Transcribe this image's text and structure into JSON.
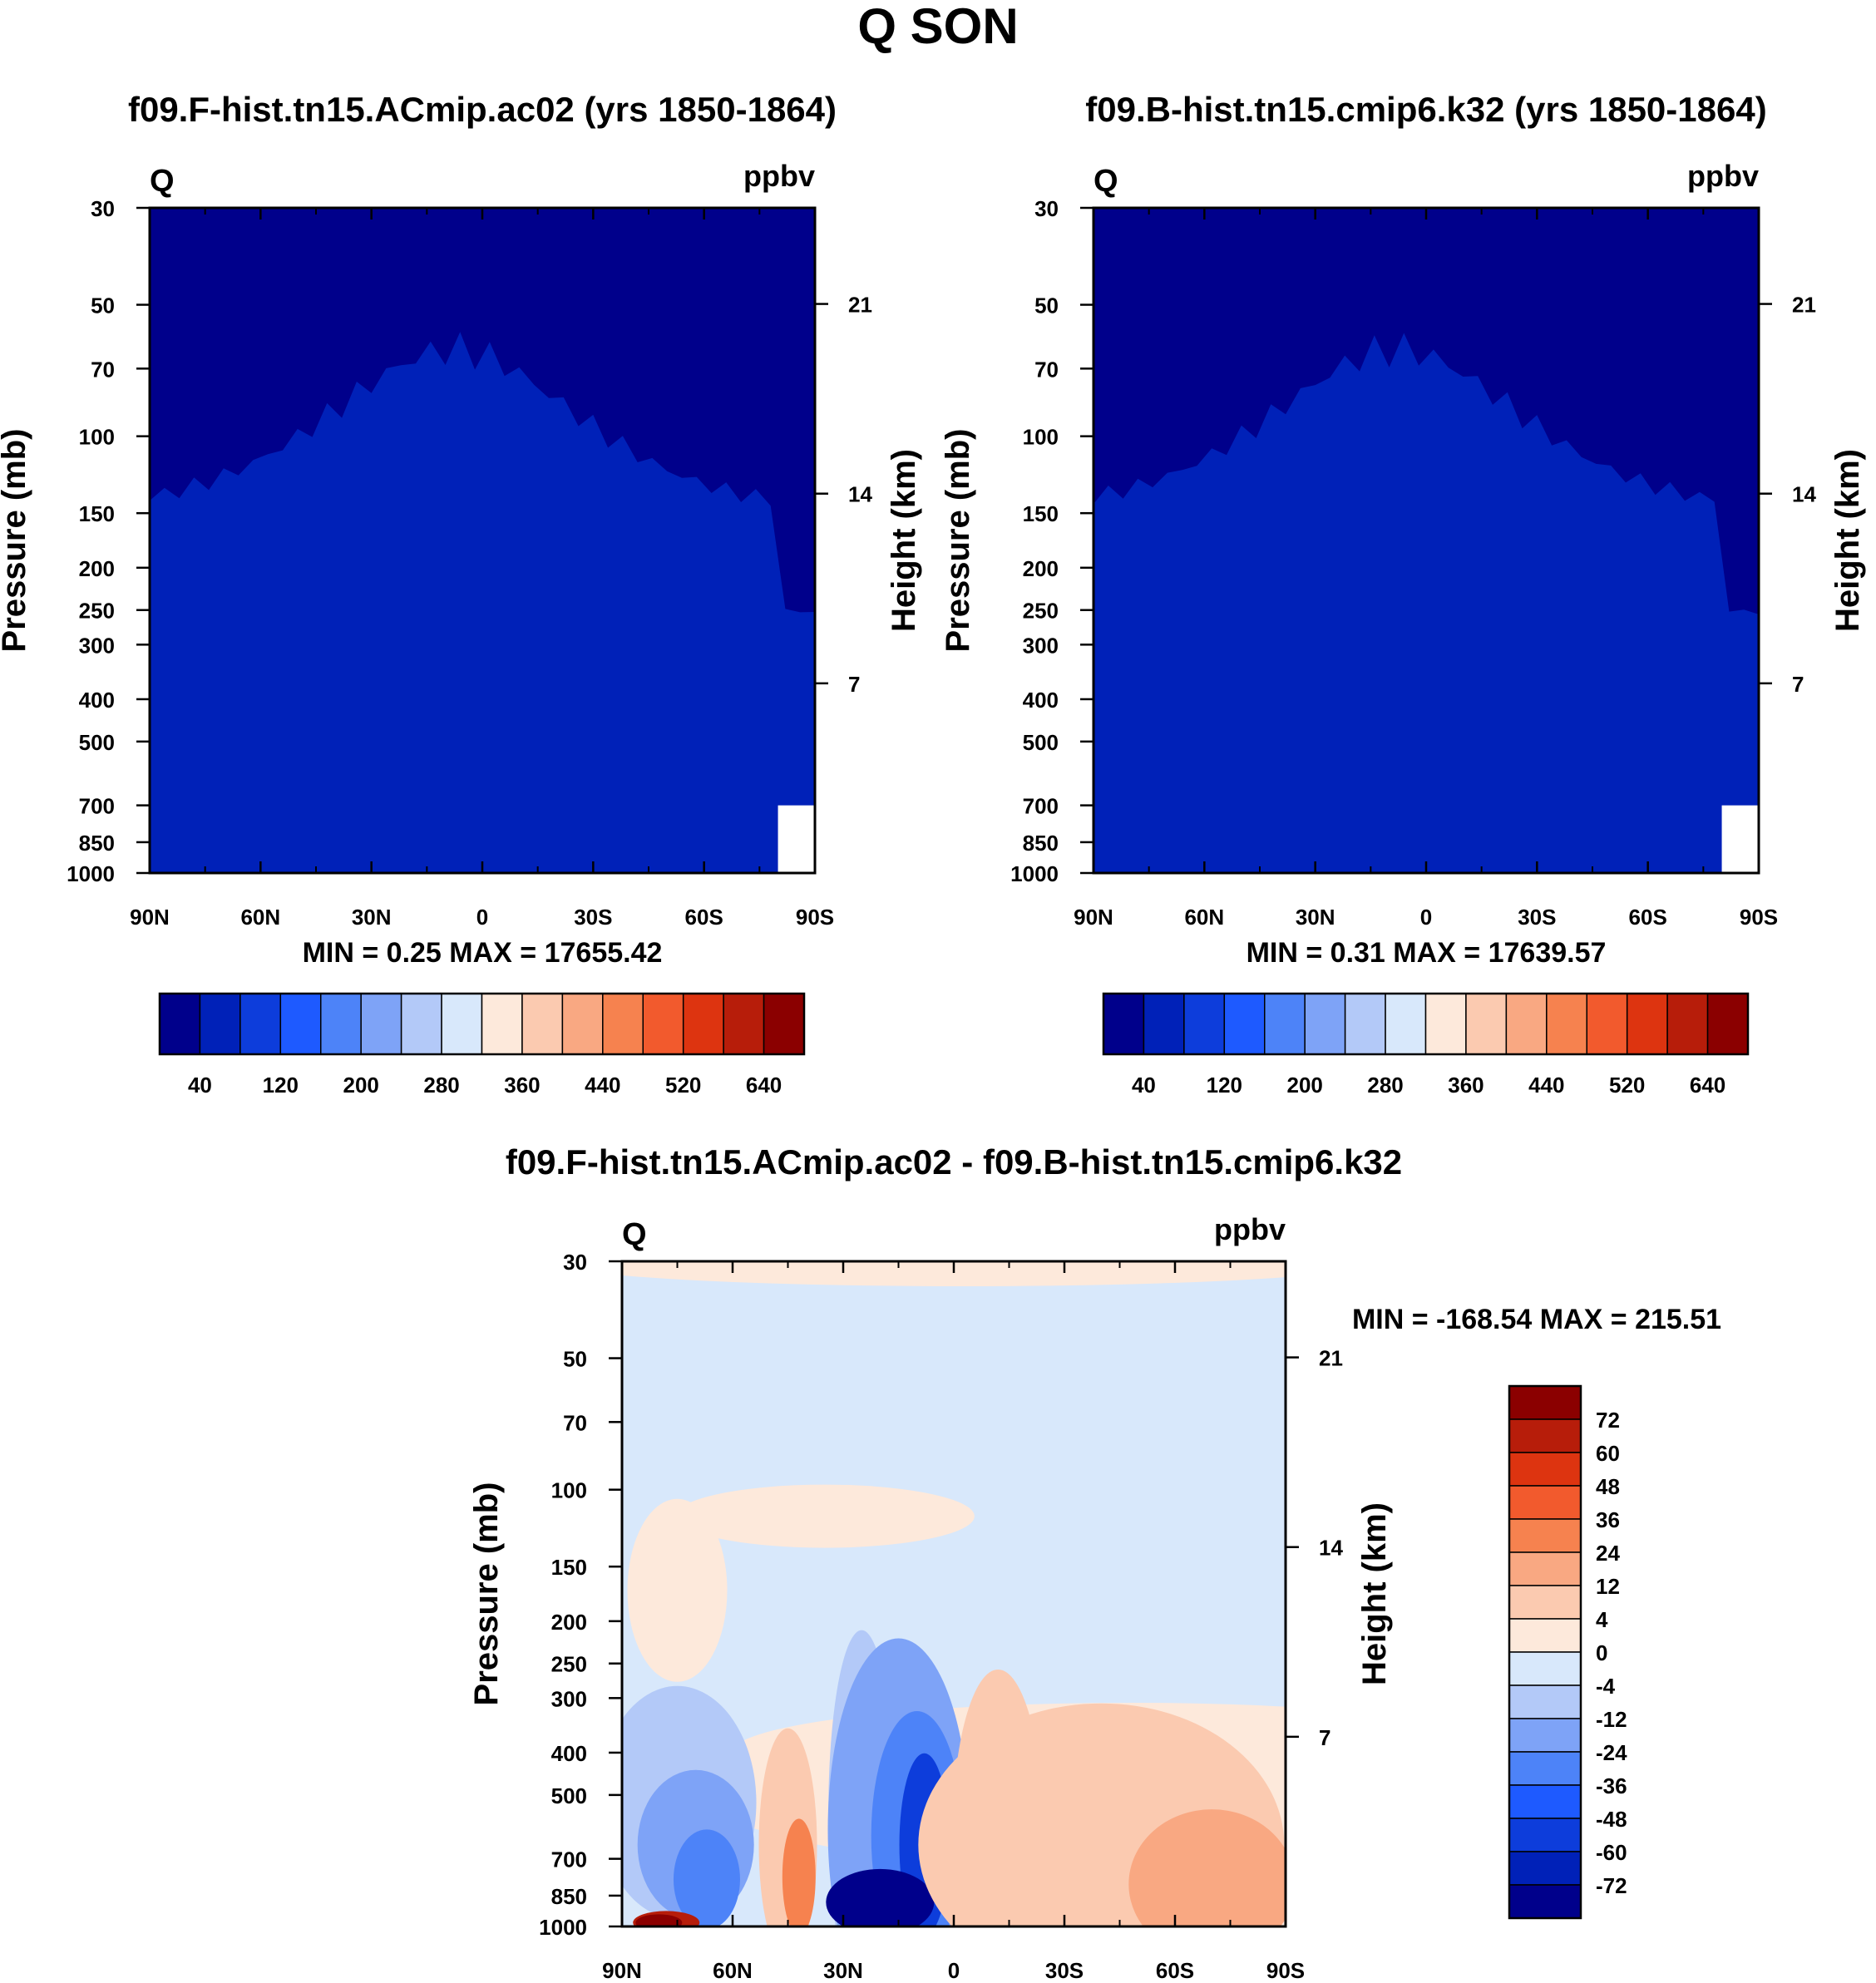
{
  "page_title": "Q SON",
  "chart_data": [
    {
      "type": "contour",
      "title": "f09.F-hist.tn15.ACmip.ac02 (yrs 1850-1864)",
      "left_label": "Q",
      "units": "ppbv",
      "ylabel": "Pressure (mb)",
      "ylabel_right": "Height (km)",
      "x_ticks": [
        "90N",
        "60N",
        "30N",
        "0",
        "30S",
        "60S",
        "90S"
      ],
      "y_ticks": [
        "30",
        "50",
        "70",
        "100",
        "150",
        "200",
        "250",
        "300",
        "400",
        "500",
        "700",
        "850",
        "1000"
      ],
      "y_ticks_values": [
        30,
        50,
        70,
        100,
        150,
        200,
        250,
        300,
        400,
        500,
        700,
        850,
        1000
      ],
      "height_ticks": [
        "7",
        "14",
        "21"
      ],
      "height_ticks_values": [
        7,
        14,
        21
      ],
      "min_max": "MIN =   0.25  MAX = 17655.42",
      "levels": [
        40,
        80,
        120,
        160,
        200,
        240,
        280,
        320,
        360,
        400,
        440,
        480,
        520,
        560,
        600,
        640
      ],
      "colorbar_labels": [
        "40",
        "120",
        "200",
        "280",
        "360",
        "440",
        "520",
        "640"
      ],
      "colors": [
        "#00008b",
        "#0021b8",
        "#0d3ddb",
        "#1e5aff",
        "#4d83f8",
        "#7ea3f7",
        "#b3c9f8",
        "#d8e8fb",
        "#fde9db",
        "#fbcab0",
        "#f9a882",
        "#f6824f",
        "#f25a2d",
        "#dd3410",
        "#b71d0a",
        "#8b0000"
      ]
    },
    {
      "type": "contour",
      "title": "f09.B-hist.tn15.cmip6.k32 (yrs 1850-1864)",
      "left_label": "Q",
      "units": "ppbv",
      "ylabel": "Pressure (mb)",
      "ylabel_right": "Height (km)",
      "x_ticks": [
        "90N",
        "60N",
        "30N",
        "0",
        "30S",
        "60S",
        "90S"
      ],
      "y_ticks": [
        "30",
        "50",
        "70",
        "100",
        "150",
        "200",
        "250",
        "300",
        "400",
        "500",
        "700",
        "850",
        "1000"
      ],
      "height_ticks": [
        "7",
        "14",
        "21"
      ],
      "min_max": "MIN =   0.31  MAX = 17639.57",
      "colorbar_labels": [
        "40",
        "120",
        "200",
        "280",
        "360",
        "440",
        "520",
        "640"
      ]
    },
    {
      "type": "contour",
      "title": "f09.F-hist.tn15.ACmip.ac02 - f09.B-hist.tn15.cmip6.k32",
      "left_label": "Q",
      "units": "ppbv",
      "ylabel": "Pressure (mb)",
      "ylabel_right": "Height (km)",
      "x_ticks": [
        "90N",
        "60N",
        "30N",
        "0",
        "30S",
        "60S",
        "90S"
      ],
      "y_ticks": [
        "30",
        "50",
        "70",
        "100",
        "150",
        "200",
        "250",
        "300",
        "400",
        "500",
        "700",
        "850",
        "1000"
      ],
      "height_ticks": [
        "7",
        "14",
        "21"
      ],
      "min_max": "MIN = -168.54  MAX = 215.51",
      "levels": [
        72,
        60,
        48,
        36,
        24,
        12,
        4,
        0,
        -4,
        -12,
        -24,
        -36,
        -48,
        -60,
        -72
      ],
      "colorbar_labels": [
        "72",
        "60",
        "48",
        "36",
        "24",
        "12",
        "4",
        "0",
        "-4",
        "-12",
        "-24",
        "-36",
        "-48",
        "-60",
        "-72"
      ],
      "colors": [
        "#8b0000",
        "#b71d0a",
        "#dd3410",
        "#f25a2d",
        "#f6824f",
        "#f9a882",
        "#fbcab0",
        "#fde9db",
        "#d8e8fb",
        "#b3c9f8",
        "#7ea3f7",
        "#4d83f8",
        "#1e5aff",
        "#0d3ddb",
        "#0021b8",
        "#00008b"
      ]
    }
  ]
}
